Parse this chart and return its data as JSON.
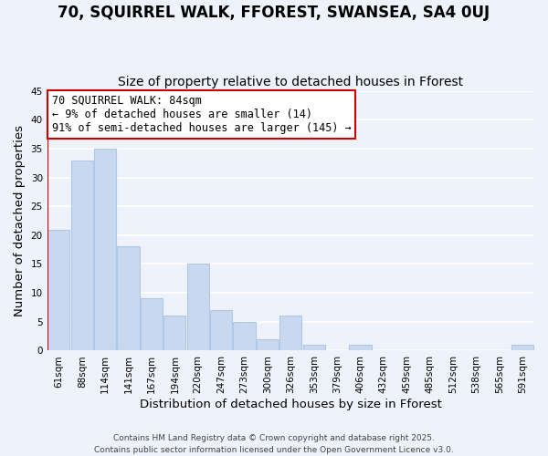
{
  "title": "70, SQUIRREL WALK, FFOREST, SWANSEA, SA4 0UJ",
  "subtitle": "Size of property relative to detached houses in Fforest",
  "xlabel": "Distribution of detached houses by size in Fforest",
  "ylabel": "Number of detached properties",
  "bar_color": "#c8d8ee",
  "bar_edge_color": "#b0c8e8",
  "highlight_bar_edge_color": "#cc0000",
  "highlight_bar_index": 1,
  "categories": [
    "61sqm",
    "88sqm",
    "114sqm",
    "141sqm",
    "167sqm",
    "194sqm",
    "220sqm",
    "247sqm",
    "273sqm",
    "300sqm",
    "326sqm",
    "353sqm",
    "379sqm",
    "406sqm",
    "432sqm",
    "459sqm",
    "485sqm",
    "512sqm",
    "538sqm",
    "565sqm",
    "591sqm"
  ],
  "values": [
    21,
    33,
    35,
    18,
    9,
    6,
    15,
    7,
    5,
    2,
    6,
    1,
    0,
    1,
    0,
    0,
    0,
    0,
    0,
    0,
    1
  ],
  "ylim": [
    0,
    45
  ],
  "yticks": [
    0,
    5,
    10,
    15,
    20,
    25,
    30,
    35,
    40,
    45
  ],
  "annotation_line1": "70 SQUIRREL WALK: 84sqm",
  "annotation_line2": "← 9% of detached houses are smaller (14)",
  "annotation_line3": "91% of semi-detached houses are larger (145) →",
  "footer_line1": "Contains HM Land Registry data © Crown copyright and database right 2025.",
  "footer_line2": "Contains public sector information licensed under the Open Government Licence v3.0.",
  "background_color": "#eef2fa",
  "grid_color": "#ffffff",
  "title_fontsize": 12,
  "subtitle_fontsize": 10,
  "tick_fontsize": 7.5,
  "label_fontsize": 9.5,
  "annotation_fontsize": 8.5,
  "footer_fontsize": 6.5
}
